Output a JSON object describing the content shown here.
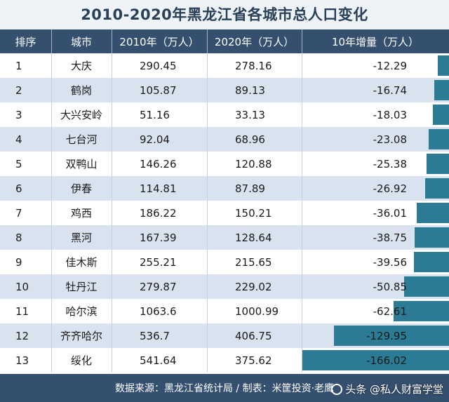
{
  "title": "2010-2020年黑龙江省各城市总人口变化",
  "headers": {
    "rank": "排序",
    "city": "城市",
    "pop2010": "2010年（万人）",
    "pop2020": "2020年（万人）",
    "increase": "10年增量（万人）"
  },
  "rows": [
    {
      "rank": "1",
      "city": "大庆",
      "pop2010": "290.45",
      "pop2020": "278.16",
      "increase": "-12.29",
      "increase_value": -12.29
    },
    {
      "rank": "2",
      "city": "鹤岗",
      "pop2010": "105.87",
      "pop2020": "89.13",
      "increase": "-16.74",
      "increase_value": -16.74
    },
    {
      "rank": "3",
      "city": "大兴安岭",
      "pop2010": "51.16",
      "pop2020": "33.13",
      "increase": "-18.03",
      "increase_value": -18.03
    },
    {
      "rank": "4",
      "city": "七台河",
      "pop2010": "92.04",
      "pop2020": "68.96",
      "increase": "-23.08",
      "increase_value": -23.08
    },
    {
      "rank": "5",
      "city": "双鸭山",
      "pop2010": "146.26",
      "pop2020": "120.88",
      "increase": "-25.38",
      "increase_value": -25.38
    },
    {
      "rank": "6",
      "city": "伊春",
      "pop2010": "114.81",
      "pop2020": "87.89",
      "increase": "-26.92",
      "increase_value": -26.92
    },
    {
      "rank": "7",
      "city": "鸡西",
      "pop2010": "186.22",
      "pop2020": "150.21",
      "increase": "-36.01",
      "increase_value": -36.01
    },
    {
      "rank": "8",
      "city": "黑河",
      "pop2010": "167.39",
      "pop2020": "128.64",
      "increase": "-38.75",
      "increase_value": -38.75
    },
    {
      "rank": "9",
      "city": "佳木斯",
      "pop2010": "255.21",
      "pop2020": "215.65",
      "increase": "-39.56",
      "increase_value": -39.56
    },
    {
      "rank": "10",
      "city": "牡丹江",
      "pop2010": "279.87",
      "pop2020": "229.02",
      "increase": "-50.85",
      "increase_value": -50.85
    },
    {
      "rank": "11",
      "city": "哈尔滨",
      "pop2010": "1063.6",
      "pop2020": "1000.99",
      "increase": "-62.61",
      "increase_value": -62.61
    },
    {
      "rank": "12",
      "city": "齐齐哈尔",
      "pop2010": "536.7",
      "pop2020": "406.75",
      "increase": "-129.95",
      "increase_value": -129.95
    },
    {
      "rank": "13",
      "city": "绥化",
      "pop2010": "541.64",
      "pop2020": "375.62",
      "increase": "-166.02",
      "increase_value": -166.02
    }
  ],
  "footer": "数据来源：黑龙江省统计局 / 制表：米筐投资·老鹰",
  "watermark": "头条 @私人财富学堂",
  "colors": {
    "title_text": "#2a3f58",
    "header_bg": "#35506f",
    "row_alt_bg": "#d8e3ef",
    "bar": "#2a7b93"
  }
}
